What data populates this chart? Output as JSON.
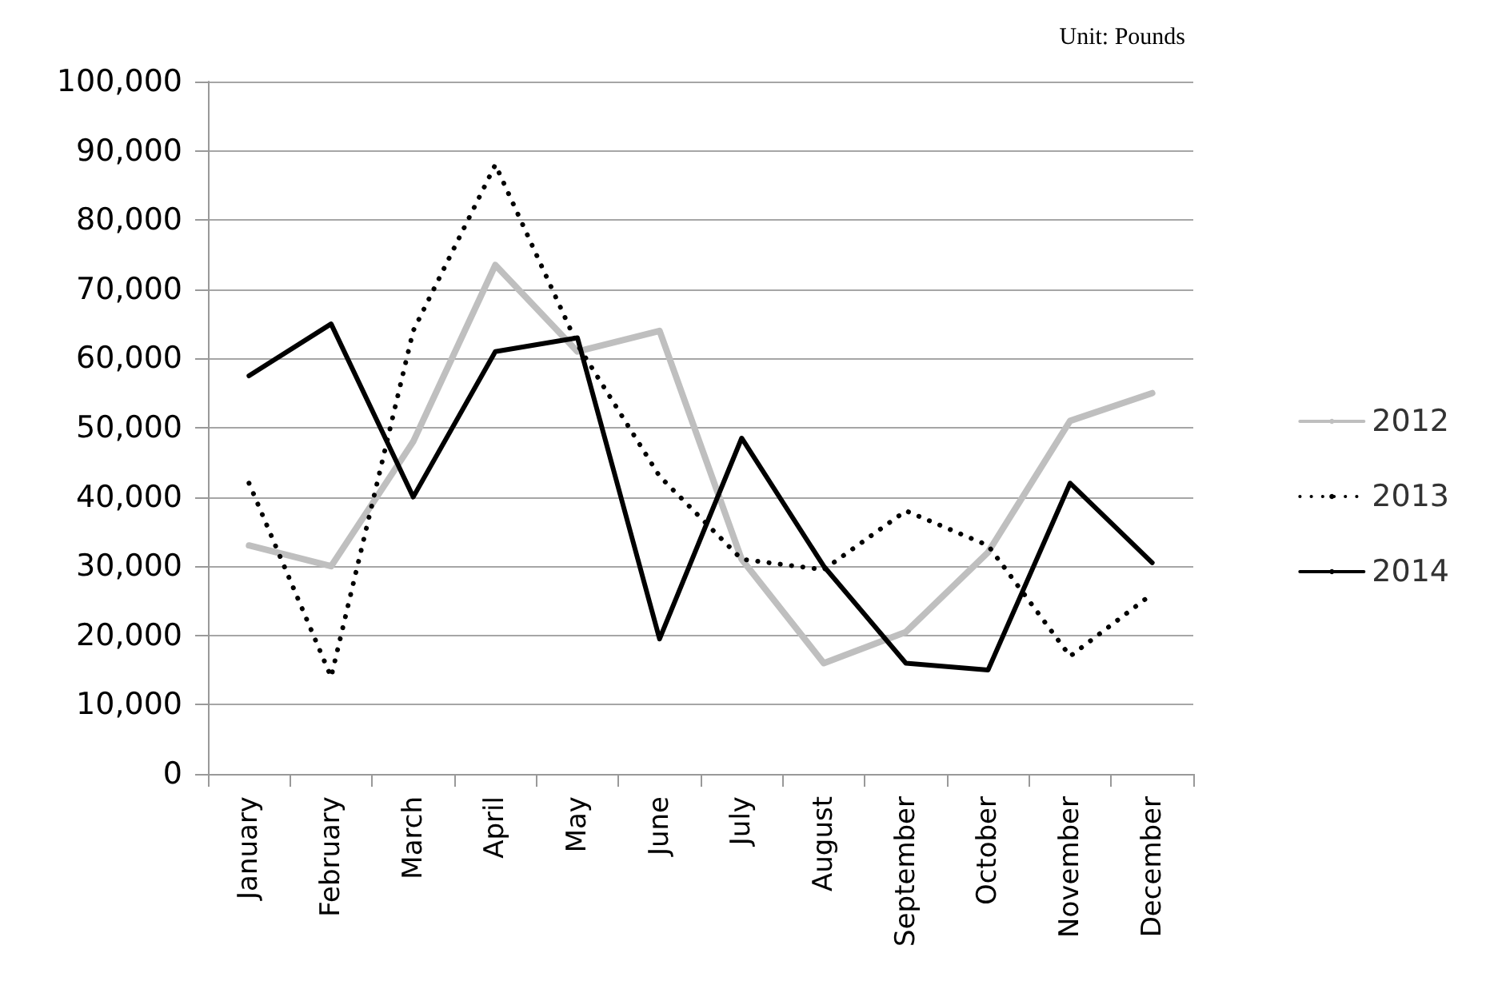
{
  "chart_data": {
    "type": "line",
    "annotations": [
      "Unit: Pounds"
    ],
    "categories": [
      "January",
      "February",
      "March",
      "April",
      "May",
      "June",
      "July",
      "August",
      "September",
      "October",
      "November",
      "December"
    ],
    "series": [
      {
        "name": "2012",
        "color": "#bfbfbf",
        "line_style": "solid",
        "values": [
          33000,
          30000,
          48000,
          73500,
          61000,
          64000,
          31000,
          16000,
          20500,
          32000,
          51000,
          55000
        ]
      },
      {
        "name": "2013",
        "color": "#000000",
        "line_style": "dotted",
        "values": [
          42000,
          14000,
          64000,
          88000,
          62000,
          43000,
          31000,
          29500,
          38000,
          33000,
          17000,
          26000
        ]
      },
      {
        "name": "2014",
        "color": "#000000",
        "line_style": "solid",
        "values": [
          57500,
          65000,
          40000,
          61000,
          63000,
          19500,
          48500,
          30000,
          16000,
          15000,
          42000,
          30500
        ]
      }
    ],
    "ylim": [
      0,
      100000
    ],
    "yticks": [
      0,
      {
        "value": 10000,
        "label": "10,000"
      },
      {
        "value": 20000,
        "label": "20,000"
      },
      {
        "value": 30000,
        "label": "30,000"
      },
      {
        "value": 40000,
        "label": "40,000"
      },
      {
        "value": 50000,
        "label": "50,000"
      },
      {
        "value": 60000,
        "label": "60,000"
      },
      {
        "value": 70000,
        "label": "70,000"
      },
      {
        "value": 80000,
        "label": "80,000"
      },
      {
        "value": 90000,
        "label": "90,000"
      },
      {
        "value": 100000,
        "label": "100,000"
      }
    ],
    "grid": "y",
    "legend": "right",
    "marker": "none"
  }
}
